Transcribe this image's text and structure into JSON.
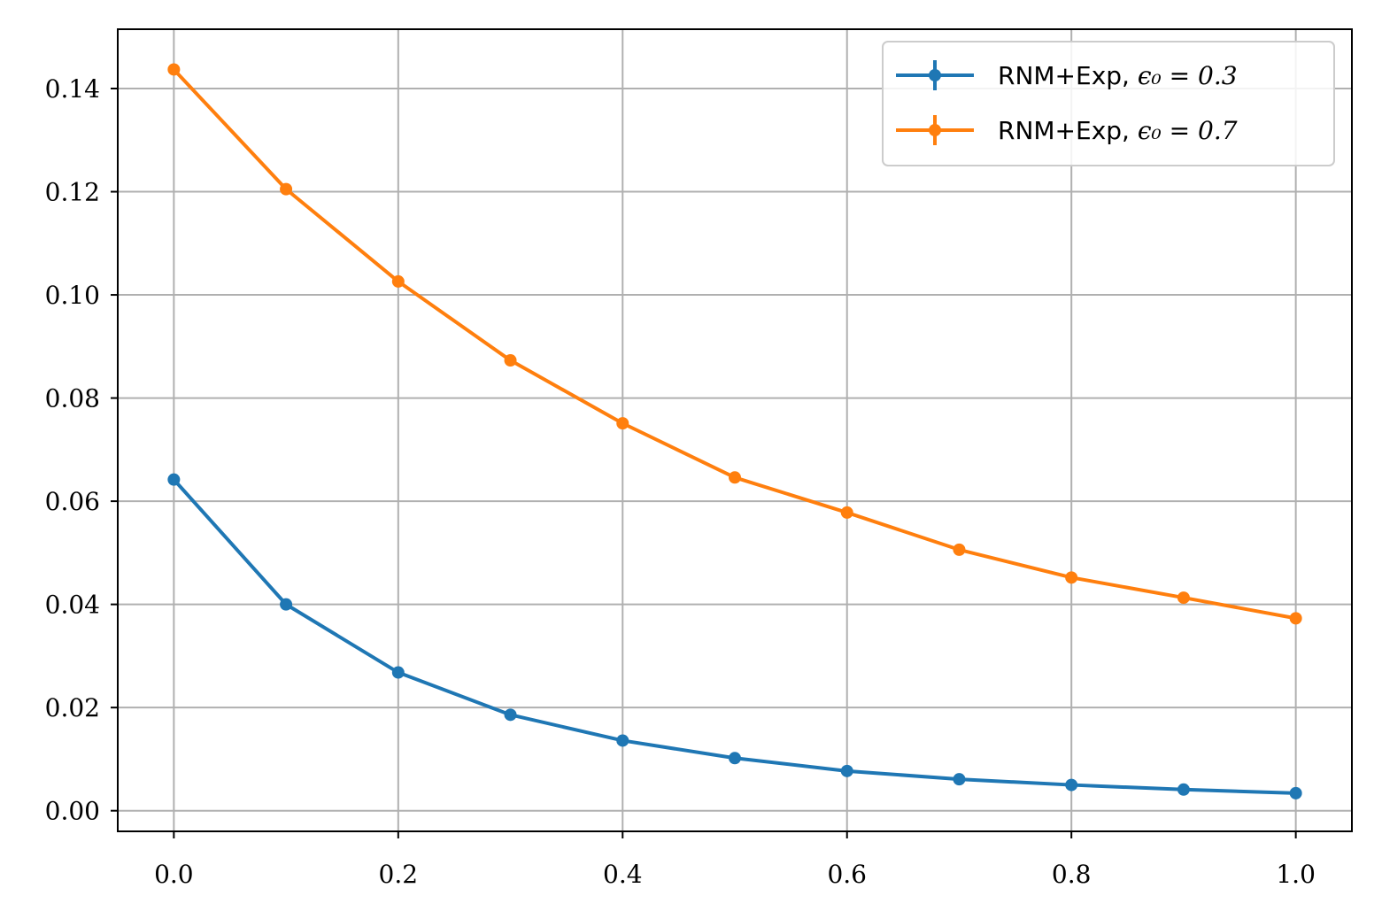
{
  "chart_data": {
    "type": "line",
    "title": "",
    "xlabel": "",
    "ylabel": "",
    "xlim": [
      -0.05,
      1.05
    ],
    "ylim": [
      -0.004,
      0.1515
    ],
    "xticks": [
      "0.0",
      "0.2",
      "0.4",
      "0.6",
      "0.8",
      "1.0"
    ],
    "xtick_values": [
      0.0,
      0.2,
      0.4,
      0.6,
      0.8,
      1.0
    ],
    "yticks": [
      "0.00",
      "0.02",
      "0.04",
      "0.06",
      "0.08",
      "0.10",
      "0.12",
      "0.14"
    ],
    "ytick_values": [
      0.0,
      0.02,
      0.04,
      0.06,
      0.08,
      0.1,
      0.12,
      0.14
    ],
    "grid": true,
    "legend_position": "top-right",
    "x": [
      0.0,
      0.1,
      0.2,
      0.3,
      0.4,
      0.5,
      0.6,
      0.7,
      0.8,
      0.9,
      1.0
    ],
    "series": [
      {
        "name": "RNM+Exp, ϵ₀ = 0.3",
        "legend_prefix": "RNM+Exp, ",
        "legend_math": "ϵ₀ = 0.3",
        "color": "#1f77b4",
        "values": [
          0.0642,
          0.04,
          0.0268,
          0.0186,
          0.0136,
          0.0102,
          0.0077,
          0.0061,
          0.005,
          0.0041,
          0.0034
        ]
      },
      {
        "name": "RNM+Exp, ϵ₀ = 0.7",
        "legend_prefix": "RNM+Exp, ",
        "legend_math": "ϵ₀ = 0.7",
        "color": "#ff7f0e",
        "values": [
          0.1437,
          0.1205,
          0.1026,
          0.0873,
          0.0751,
          0.0646,
          0.0578,
          0.0506,
          0.0452,
          0.0413,
          0.0373
        ]
      }
    ]
  }
}
